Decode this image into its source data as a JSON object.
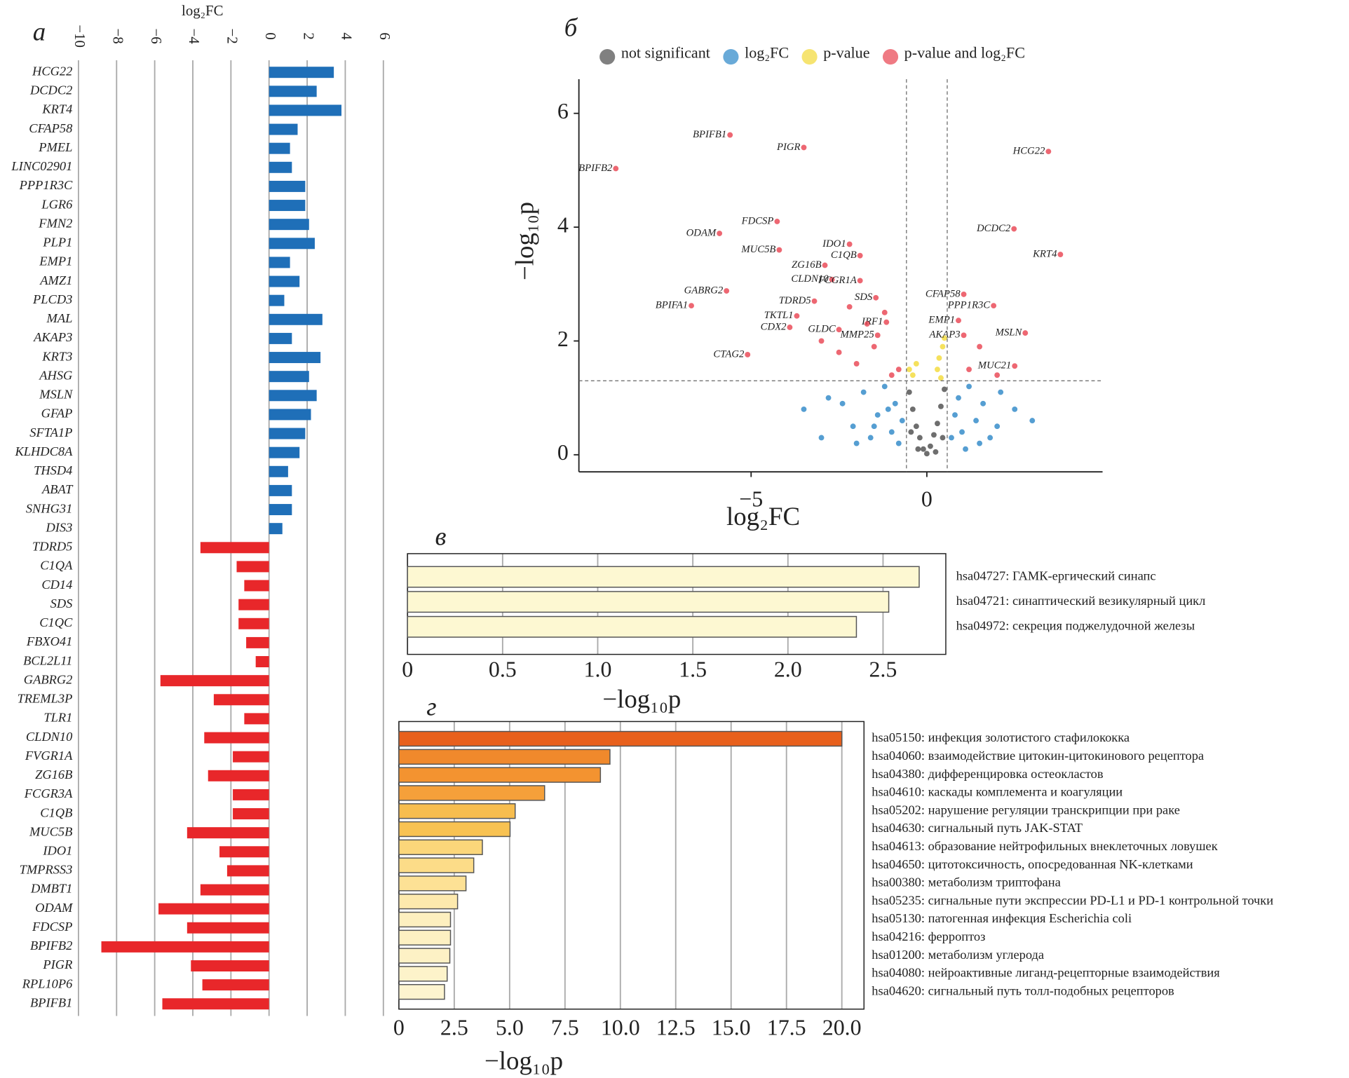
{
  "chart_data": [
    {
      "type": "bar",
      "orientation": "horizontal",
      "panel_label": "а",
      "xlabel": "log₂FC",
      "categories": [
        "HCG22",
        "DCDC2",
        "KRT4",
        "CFAP58",
        "PMEL",
        "LINC02901",
        "PPP1R3C",
        "LGR6",
        "FMN2",
        "PLP1",
        "EMP1",
        "AMZ1",
        "PLCD3",
        "MAL",
        "AKAP3",
        "KRT3",
        "AHSG",
        "MSLN",
        "GFAP",
        "SFTA1P",
        "KLHDC8A",
        "THSD4",
        "ABAT",
        "SNHG31",
        "DIS3",
        "TDRD5",
        "C1QA",
        "CD14",
        "SDS",
        "C1QC",
        "FBXO41",
        "BCL2L11",
        "GABRG2",
        "TREML3P",
        "TLR1",
        "CLDN10",
        "FVGR1A",
        "ZG16B",
        "FCGR3A",
        "C1QB",
        "MUC5B",
        "IDO1",
        "TMPRSS3",
        "DMBT1",
        "ODAM",
        "FDCSP",
        "BPIFB2",
        "PIGR",
        "RPL10P6",
        "BPIFB1"
      ],
      "values": [
        3.4,
        2.5,
        3.8,
        1.5,
        1.1,
        1.2,
        1.9,
        1.9,
        2.1,
        2.4,
        1.1,
        1.6,
        0.8,
        2.8,
        1.2,
        2.7,
        2.1,
        2.5,
        2.2,
        1.9,
        1.6,
        1.0,
        1.2,
        1.2,
        0.7,
        -3.6,
        -1.7,
        -1.3,
        -1.6,
        -1.6,
        -1.2,
        -0.7,
        -5.7,
        -2.9,
        -1.3,
        -3.4,
        -1.9,
        -3.2,
        -1.9,
        -1.9,
        -4.3,
        -2.6,
        -2.2,
        -3.6,
        -5.8,
        -4.3,
        -8.8,
        -4.1,
        -3.5,
        -5.6
      ],
      "positive_color": "#1f6fb8",
      "negative_color": "#e8272a",
      "xlim": [
        -10,
        6
      ],
      "xticks": [
        {
          "value": -10,
          "label": "−10"
        },
        {
          "value": -8,
          "label": "−8"
        },
        {
          "value": -6,
          "label": "−6"
        },
        {
          "value": -4,
          "label": "−4"
        },
        {
          "value": -2,
          "label": "−2"
        },
        0,
        2,
        4,
        6
      ],
      "grid": true
    },
    {
      "type": "scatter",
      "panel_label": "б",
      "xlabel": "log₂FC",
      "ylabel": "−log₁₀p",
      "xlim": [
        -9.9,
        5.0
      ],
      "ylim": [
        -0.3,
        6.6
      ],
      "xticks": [
        {
          "value": -5,
          "label": "−5"
        },
        0
      ],
      "yticks": [
        0,
        2,
        4,
        6
      ],
      "x_thresholds": [
        -0.58,
        0.58
      ],
      "y_threshold": 1.3,
      "legend": "top",
      "series": [
        {
          "name": "not significant",
          "color": "#4a4a4a",
          "x": [
            -0.5,
            -0.4,
            -0.3,
            -0.2,
            -0.1,
            0,
            0.1,
            0.2,
            0.3,
            0.4,
            0.5,
            -0.45,
            0.45,
            -0.25,
            0.25
          ],
          "values": [
            1.1,
            0.8,
            0.5,
            0.3,
            0.1,
            0.02,
            0.15,
            0.35,
            0.55,
            0.85,
            1.15,
            0.4,
            0.3,
            0.1,
            0.05
          ]
        },
        {
          "name": "log₂FC",
          "color": "#2a86c7",
          "x": [
            -3.5,
            -2.8,
            -2.4,
            -2.1,
            -1.8,
            -1.6,
            -1.4,
            -1.2,
            -1.0,
            -0.9,
            -0.8,
            -0.7,
            -2.0,
            -1.5,
            -1.1,
            0.7,
            0.8,
            0.9,
            1.0,
            1.2,
            1.4,
            1.6,
            1.8,
            2.1,
            2.5,
            1.1,
            1.5,
            2.0,
            -3.0,
            3.0
          ],
          "values": [
            0.8,
            1.0,
            0.9,
            0.5,
            1.1,
            0.3,
            0.7,
            1.2,
            0.4,
            0.9,
            0.2,
            0.6,
            0.2,
            0.5,
            0.8,
            0.3,
            0.7,
            1.0,
            0.4,
            1.2,
            0.6,
            0.9,
            0.3,
            1.1,
            0.8,
            0.1,
            0.2,
            0.5,
            0.3,
            0.6
          ]
        },
        {
          "name": "p-value",
          "color": "#f2d934",
          "x": [
            -0.4,
            -0.3,
            0.3,
            0.35,
            0.4,
            0.45,
            -0.5,
            0.5
          ],
          "values": [
            1.4,
            1.6,
            1.5,
            1.7,
            1.35,
            1.9,
            1.5,
            2.05
          ]
        },
        {
          "name": "p-value and log₂FC",
          "color": "#e8414f",
          "x": [
            -5.6,
            -3.5,
            -8.85,
            3.46,
            -4.26,
            -5.9,
            -4.2,
            -2.2,
            -1.9,
            -2.9,
            -2.7,
            -1.9,
            2.48,
            3.8,
            -5.7,
            -6.7,
            -3.2,
            -1.45,
            1.05,
            1.9,
            -3.7,
            -5.1,
            -3.9,
            0.9,
            2.8,
            1.05,
            2.5,
            -1.15,
            -1.4,
            -2.5,
            -2.0,
            -1.5,
            -1.0,
            -2.5,
            -3.0,
            -1.2,
            -0.8,
            1.2,
            1.5,
            2.0,
            -1.7,
            -2.2
          ],
          "values": [
            5.62,
            5.4,
            5.03,
            5.33,
            4.1,
            3.89,
            3.6,
            3.7,
            3.5,
            3.33,
            3.08,
            3.06,
            3.97,
            3.52,
            2.88,
            2.62,
            2.7,
            2.76,
            2.82,
            2.62,
            2.44,
            1.76,
            2.24,
            2.36,
            2.14,
            2.1,
            1.56,
            2.33,
            2.1,
            2.2,
            1.6,
            1.9,
            1.4,
            1.8,
            2.0,
            2.5,
            1.5,
            1.5,
            1.9,
            1.4,
            2.3,
            2.6
          ],
          "labels": [
            "BPIFB1",
            "PIGR",
            "BPIFB2",
            "HCG22",
            "FDCSP",
            "ODAM",
            "MUC5B",
            "IDO1",
            "C1QB",
            "ZG16B",
            "CLDN10",
            "FCGR1A",
            "DCDC2",
            "KRT4",
            "GABRG2",
            "BPIFA1",
            "TDRD5",
            "SDS",
            "CFAP58",
            "PPP1R3C",
            "TKTL1",
            "CTAG2",
            "CDX2",
            "EMP1",
            "MSLN",
            "AKAP3",
            "MUC21",
            "IRF1",
            "MMP25",
            "GLDC",
            null,
            null,
            null,
            null,
            null,
            null,
            null,
            null,
            null,
            null,
            null,
            null
          ]
        }
      ]
    },
    {
      "type": "bar",
      "orientation": "horizontal",
      "panel_label": "в",
      "xlabel": "−log₁₀p",
      "categories": [
        "hsa04727: ГАМК-ергический синапс",
        "hsa04721: синаптический везикулярный цикл",
        "hsa04972: секреция поджелудочной железы"
      ],
      "values": [
        2.69,
        2.53,
        2.36
      ],
      "colors": [
        "#fdf8d2",
        "#fdf8d2",
        "#fdf8d2"
      ],
      "xlim": [
        0,
        2.83
      ],
      "xticks": [
        0,
        0.5,
        {
          "value": 1,
          "label": "1.0"
        },
        1.5,
        {
          "value": 2,
          "label": "2.0"
        },
        2.5
      ],
      "grid": true
    },
    {
      "type": "bar",
      "orientation": "horizontal",
      "panel_label": "г",
      "xlabel": "−log₁₀p",
      "categories": [
        "hsa05150: инфекция золотистого стафилококка",
        "hsa04060: взаимодействие цитокин-цитокинового рецептора",
        "hsa04380: дифференцировка остеокластов",
        "hsa04610: каскады комплемента и коагуляции",
        "hsa05202: нарушение регуляции транскрипции при раке",
        "hsa04630: сигнальный путь JAK-STAT",
        "hsa04613: образование нейтрофильных внеклеточных ловушек",
        "hsa04650: цитотоксичность, опосредованная NK-клетками",
        "hsa00380: метаболизм триптофана",
        "hsa05235: сигнальные пути экспрессии PD-L1 и PD-1 контрольной точки",
        "hsa05130: патогенная инфекция Escherichia coli",
        "hsa04216: ферроптоз",
        "hsa01200: метаболизм углерода",
        "hsa04080: нейроактивные лиганд-рецепторные взаимодействия",
        "hsa04620: сигнальный путь толл-подобных рецепторов"
      ],
      "values": [
        20.0,
        9.53,
        9.1,
        6.58,
        5.25,
        5.02,
        3.77,
        3.38,
        3.03,
        2.65,
        2.33,
        2.33,
        2.3,
        2.18,
        2.06
      ],
      "colors": [
        "#e8601c",
        "#f0892c",
        "#f39330",
        "#f5a03a",
        "#f7bd4e",
        "#f8c252",
        "#fbd67a",
        "#fcdc88",
        "#fde195",
        "#fde9ad",
        "#fdefbf",
        "#fdf0c2",
        "#fdf1c5",
        "#fdf3ca",
        "#fdf4cf"
      ],
      "xlim": [
        0,
        21.0
      ],
      "xticks": [
        0,
        2.5,
        {
          "value": 5,
          "label": "5.0"
        },
        7.5,
        {
          "value": 10,
          "label": "10.0"
        },
        12.5,
        {
          "value": 15,
          "label": "15.0"
        },
        17.5,
        {
          "value": 20,
          "label": "20.0"
        }
      ],
      "grid": true
    }
  ]
}
